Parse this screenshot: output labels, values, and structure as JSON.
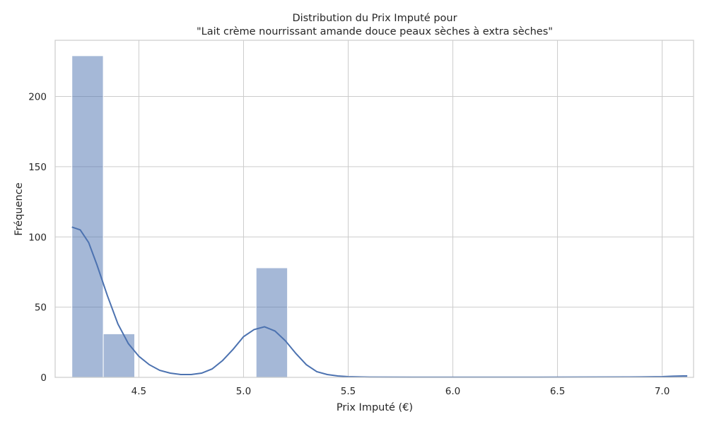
{
  "chart_data": {
    "type": "bar",
    "variant": "histogram-with-kde",
    "title_line1": "Distribution du Prix Imputé pour",
    "title_line2": "\"Lait crème nourrissant amande douce peaux sèches à extra sèches\"",
    "xlabel": "Prix Imputé (€)",
    "ylabel": "Fréquence",
    "xlim": [
      4.1,
      7.15
    ],
    "ylim": [
      0,
      240
    ],
    "xticks": [
      4.5,
      5.0,
      5.5,
      6.0,
      6.5,
      7.0
    ],
    "xtick_labels": [
      "4.5",
      "5.0",
      "5.5",
      "6.0",
      "6.5",
      "7.0"
    ],
    "yticks": [
      0,
      50,
      100,
      150,
      200
    ],
    "ytick_labels": [
      "0",
      "50",
      "100",
      "150",
      "200"
    ],
    "grid": true,
    "bar_color": "#4c72b0",
    "kde_color": "#4c72b0",
    "bins": [
      {
        "x0": 4.18,
        "x1": 4.33,
        "count": 229
      },
      {
        "x0": 4.33,
        "x1": 4.48,
        "count": 31
      },
      {
        "x0": 4.48,
        "x1": 4.63,
        "count": 0
      },
      {
        "x0": 4.63,
        "x1": 4.77,
        "count": 0
      },
      {
        "x0": 4.77,
        "x1": 4.92,
        "count": 0
      },
      {
        "x0": 4.92,
        "x1": 5.06,
        "count": 0
      },
      {
        "x0": 5.06,
        "x1": 5.21,
        "count": 78
      },
      {
        "x0": 5.21,
        "x1": 5.36,
        "count": 0
      },
      {
        "x0": 5.36,
        "x1": 5.5,
        "count": 0
      },
      {
        "x0": 5.5,
        "x1": 5.65,
        "count": 0
      },
      {
        "x0": 5.65,
        "x1": 5.8,
        "count": 0
      },
      {
        "x0": 5.8,
        "x1": 5.94,
        "count": 0
      },
      {
        "x0": 5.94,
        "x1": 6.09,
        "count": 0
      },
      {
        "x0": 6.09,
        "x1": 6.24,
        "count": 0
      },
      {
        "x0": 6.24,
        "x1": 6.38,
        "count": 0
      },
      {
        "x0": 6.38,
        "x1": 6.53,
        "count": 0
      },
      {
        "x0": 6.53,
        "x1": 6.68,
        "count": 0
      },
      {
        "x0": 6.68,
        "x1": 6.82,
        "count": 0
      },
      {
        "x0": 6.82,
        "x1": 6.97,
        "count": 0
      },
      {
        "x0": 6.97,
        "x1": 7.12,
        "count": 1
      }
    ],
    "kde": {
      "x": [
        4.18,
        4.22,
        4.26,
        4.3,
        4.35,
        4.4,
        4.45,
        4.5,
        4.55,
        4.6,
        4.65,
        4.7,
        4.75,
        4.8,
        4.85,
        4.9,
        4.95,
        5.0,
        5.05,
        5.1,
        5.15,
        5.2,
        5.25,
        5.3,
        5.35,
        5.4,
        5.45,
        5.5,
        5.6,
        5.8,
        6.0,
        6.3,
        6.6,
        6.9,
        7.0,
        7.05,
        7.1,
        7.12
      ],
      "y": [
        107,
        105,
        96,
        80,
        58,
        38,
        24,
        15,
        9,
        5,
        3,
        2,
        2,
        3,
        6,
        12,
        20,
        29,
        34,
        36,
        33,
        26,
        17,
        9,
        4,
        2,
        1,
        0.5,
        0.2,
        0.1,
        0.1,
        0.1,
        0.2,
        0.3,
        0.5,
        0.8,
        1,
        1
      ]
    }
  }
}
